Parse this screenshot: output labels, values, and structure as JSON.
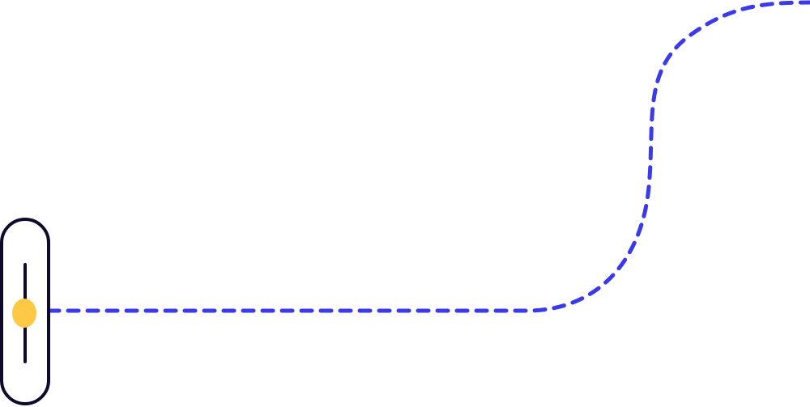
{
  "colors": {
    "background": "#ffffff",
    "outline": "#0d0a2c",
    "dashed_path": "#3a3ae8",
    "handle": "#ffc845"
  },
  "icons": {
    "slider": "vertical-slider-icon",
    "handle": "handle-dot-icon",
    "path": "dashed-connector-path"
  },
  "slider": {
    "orientation": "vertical",
    "level": 0.5
  }
}
